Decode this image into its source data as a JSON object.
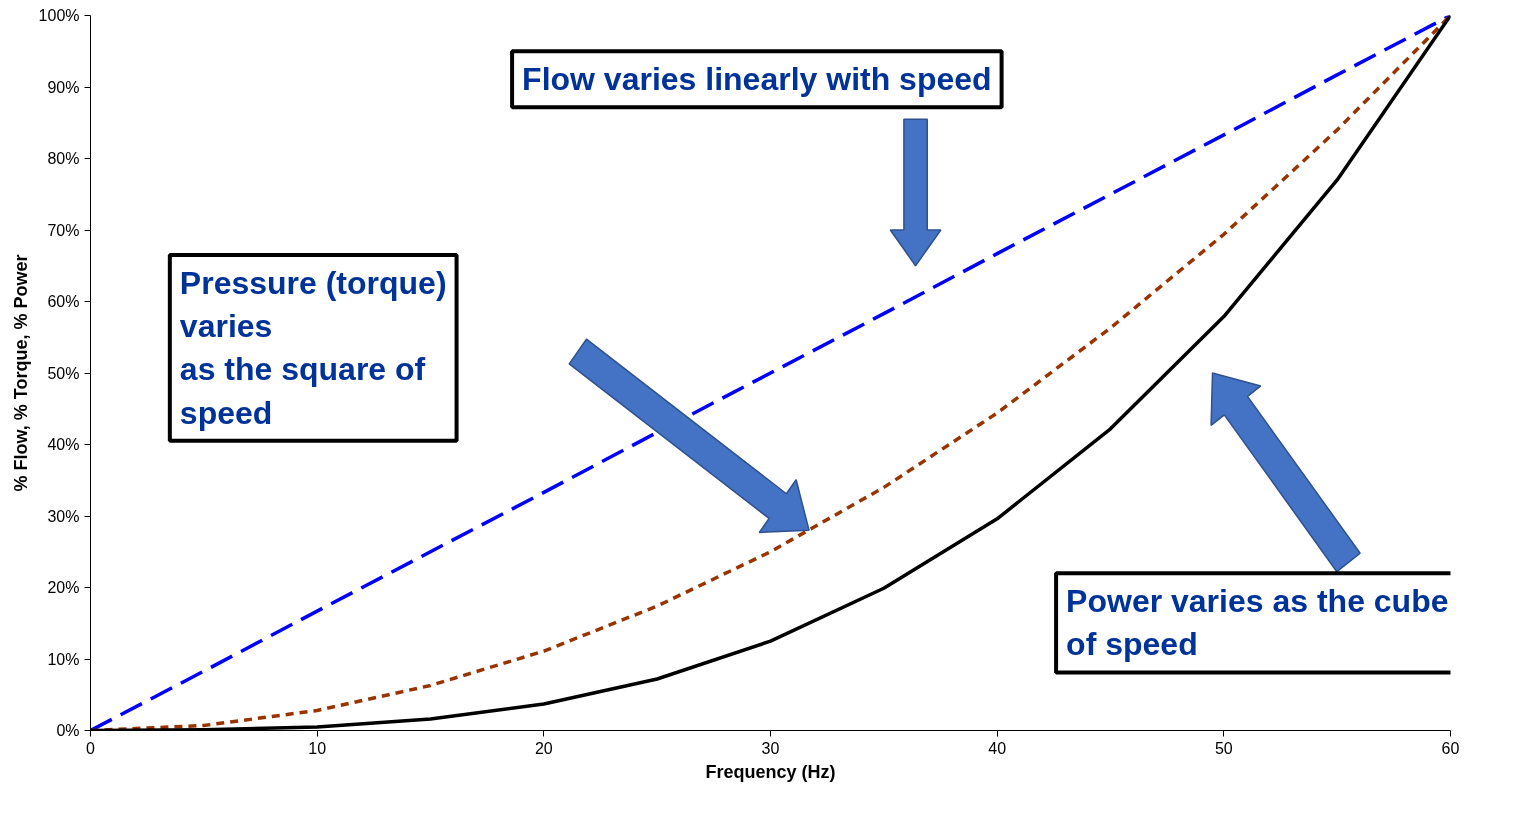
{
  "chart_data": {
    "type": "line",
    "xlabel": "Frequency (Hz)",
    "ylabel": "% Flow, % Torque, % Power",
    "x": [
      0,
      5,
      10,
      15,
      20,
      25,
      30,
      35,
      40,
      45,
      50,
      55,
      60
    ],
    "series": [
      {
        "color": "#0000ff",
        "line_style": "dashed",
        "values": [
          0,
          8.3,
          16.7,
          25,
          33.3,
          41.7,
          50,
          58.3,
          66.7,
          75,
          83.3,
          91.7,
          100
        ]
      },
      {
        "color": "#993300",
        "line_style": "dotted",
        "values": [
          0,
          0.7,
          2.8,
          6.3,
          11.1,
          17.4,
          25,
          34,
          44.4,
          56.3,
          69.4,
          84,
          100
        ]
      },
      {
        "color": "#000000",
        "line_style": "solid",
        "values": [
          0,
          0.1,
          0.5,
          1.6,
          3.7,
          7.2,
          12.5,
          19.9,
          29.6,
          42.2,
          57.9,
          77,
          100
        ]
      }
    ],
    "xlim": [
      0,
      60
    ],
    "xticks": [
      0,
      10,
      20,
      30,
      40,
      50,
      60
    ],
    "ylim": [
      0,
      100
    ],
    "yticks": [
      {
        "value": 0,
        "label": "0%"
      },
      {
        "value": 10,
        "label": "10%"
      },
      {
        "value": 20,
        "label": "20%"
      },
      {
        "value": 30,
        "label": "30%"
      },
      {
        "value": 40,
        "label": "40%"
      },
      {
        "value": 50,
        "label": "50%"
      },
      {
        "value": 60,
        "label": "60%"
      },
      {
        "value": 70,
        "label": "70%"
      },
      {
        "value": 80,
        "label": "80%"
      },
      {
        "value": 90,
        "label": "90%"
      },
      {
        "value": 100,
        "label": "100%"
      }
    ],
    "annotations": [
      "Flow varies linearly with speed",
      "Pressure (torque)\nvaries\nas the square of\nspeed",
      "Power varies as the cube\nof speed"
    ],
    "grid": false,
    "marker": "none"
  }
}
